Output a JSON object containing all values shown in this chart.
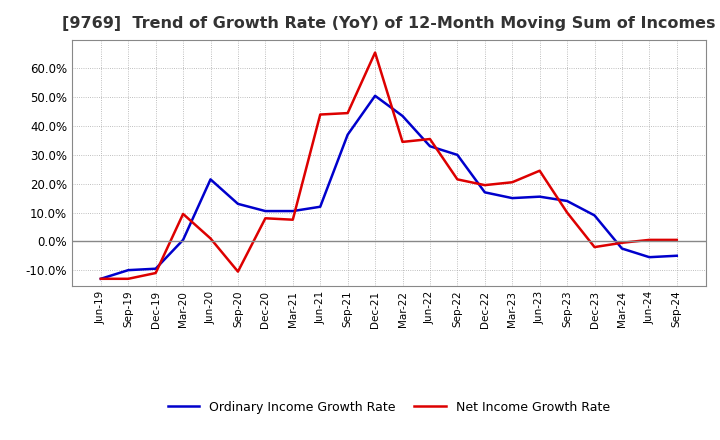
{
  "title": "[9769]  Trend of Growth Rate (YoY) of 12-Month Moving Sum of Incomes",
  "title_fontsize": 11.5,
  "ylim": [
    -0.155,
    0.7
  ],
  "yticks": [
    -0.1,
    0.0,
    0.1,
    0.2,
    0.3,
    0.4,
    0.5,
    0.6
  ],
  "background_color": "#ffffff",
  "grid_color": "#aaaaaa",
  "ordinary_color": "#0000cc",
  "net_color": "#dd0000",
  "dates": [
    "Jun-19",
    "Sep-19",
    "Dec-19",
    "Mar-20",
    "Jun-20",
    "Sep-20",
    "Dec-20",
    "Mar-21",
    "Jun-21",
    "Sep-21",
    "Dec-21",
    "Mar-22",
    "Jun-22",
    "Sep-22",
    "Dec-22",
    "Mar-23",
    "Jun-23",
    "Sep-23",
    "Dec-23",
    "Mar-24",
    "Jun-24",
    "Sep-24"
  ],
  "ordinary_income_growth": [
    -0.13,
    -0.1,
    -0.095,
    0.005,
    0.215,
    0.13,
    0.105,
    0.105,
    0.12,
    0.37,
    0.505,
    0.435,
    0.33,
    0.3,
    0.17,
    0.15,
    0.155,
    0.14,
    0.09,
    -0.025,
    -0.055,
    -0.05
  ],
  "net_income_growth": [
    -0.13,
    -0.13,
    -0.11,
    0.095,
    0.01,
    -0.105,
    0.08,
    0.075,
    0.44,
    0.445,
    0.655,
    0.345,
    0.355,
    0.215,
    0.195,
    0.205,
    0.245,
    0.1,
    -0.02,
    -0.005,
    0.005,
    0.005
  ],
  "legend_ordinary": "Ordinary Income Growth Rate",
  "legend_net": "Net Income Growth Rate"
}
